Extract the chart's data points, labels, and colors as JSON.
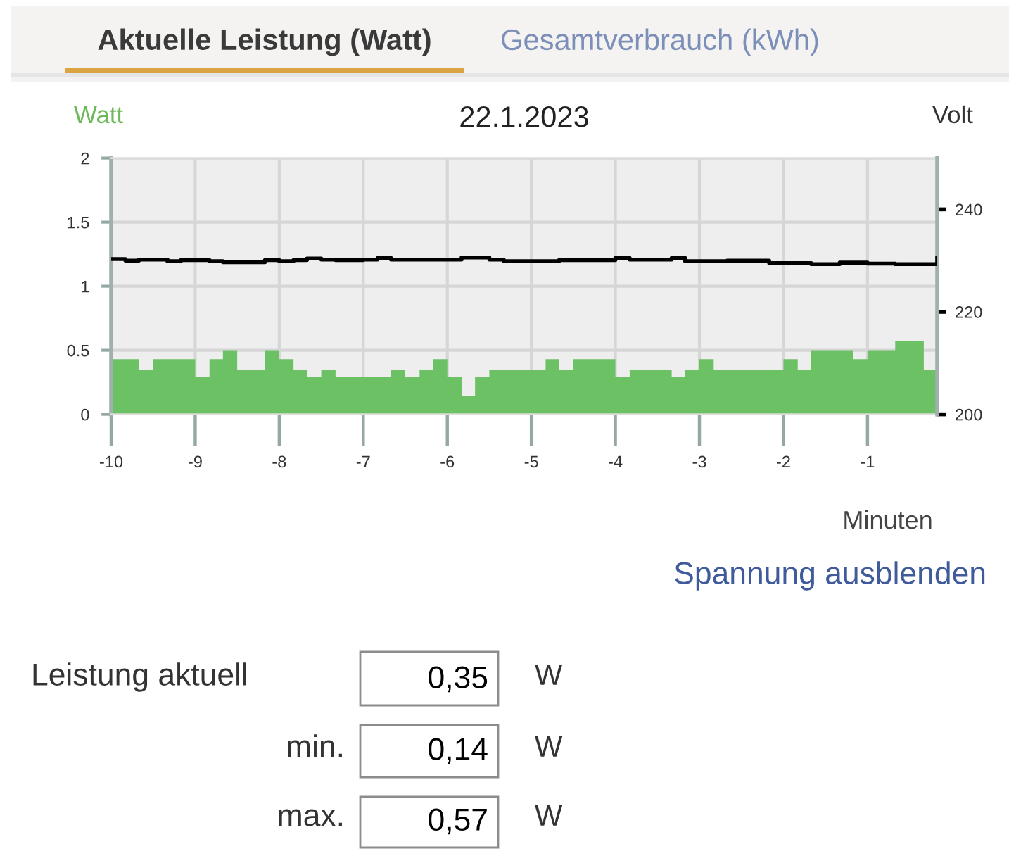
{
  "chart_data": {
    "type": "area",
    "title": "22.1.2023",
    "xlabel": "Minuten",
    "ylabel": "Watt",
    "y2label": "Volt",
    "xlim": [
      -10,
      -0.17
    ],
    "xticks": [
      -10,
      -9,
      -8,
      -7,
      -6,
      -5,
      -4,
      -3,
      -2,
      -1
    ],
    "ylim": [
      0,
      2
    ],
    "yticks": [
      0,
      0.5,
      1,
      1.5,
      2
    ],
    "y2lim": [
      200,
      250
    ],
    "y2ticks": [
      200,
      220,
      240
    ],
    "grid": true,
    "series": [
      {
        "color": "#6cc164",
        "x": [
          -10,
          -9.67,
          -9.67,
          -9.5,
          -9.5,
          -9,
          -9,
          -8.83,
          -8.83,
          -8.67,
          -8.67,
          -8.5,
          -8.5,
          -8.17,
          -8.17,
          -8,
          -8,
          -7.83,
          -7.83,
          -7.67,
          -7.67,
          -7.5,
          -7.5,
          -7.33,
          -7.33,
          -6.67,
          -6.67,
          -6.5,
          -6.5,
          -6.33,
          -6.33,
          -6.17,
          -6.17,
          -6,
          -6,
          -5.83,
          -5.83,
          -5.67,
          -5.67,
          -5.5,
          -5.5,
          -4.83,
          -4.83,
          -4.67,
          -4.67,
          -4.5,
          -4.5,
          -4,
          -4,
          -3.83,
          -3.83,
          -3.33,
          -3.33,
          -3.17,
          -3.17,
          -3,
          -3,
          -2.83,
          -2.83,
          -2,
          -2,
          -1.83,
          -1.83,
          -1.67,
          -1.67,
          -1.17,
          -1.17,
          -1,
          -1,
          -0.67,
          -0.67,
          -0.33,
          -0.33,
          -0.17
        ],
        "values": [
          0.43,
          0.43,
          0.35,
          0.35,
          0.43,
          0.43,
          0.29,
          0.29,
          0.43,
          0.43,
          0.5,
          0.5,
          0.35,
          0.35,
          0.5,
          0.5,
          0.43,
          0.43,
          0.35,
          0.35,
          0.29,
          0.29,
          0.35,
          0.35,
          0.29,
          0.29,
          0.35,
          0.35,
          0.29,
          0.29,
          0.35,
          0.35,
          0.43,
          0.43,
          0.29,
          0.29,
          0.14,
          0.14,
          0.29,
          0.29,
          0.35,
          0.35,
          0.43,
          0.43,
          0.35,
          0.35,
          0.43,
          0.43,
          0.29,
          0.29,
          0.35,
          0.35,
          0.29,
          0.29,
          0.35,
          0.35,
          0.43,
          0.43,
          0.35,
          0.35,
          0.43,
          0.43,
          0.35,
          0.35,
          0.5,
          0.5,
          0.43,
          0.43,
          0.5,
          0.5,
          0.57,
          0.57,
          0.35,
          0.35
        ]
      },
      {
        "type": "step",
        "axis": "y2",
        "color": "#000000",
        "x": [
          -10,
          -9.83,
          -9.67,
          -9.33,
          -9.17,
          -8.83,
          -8.67,
          -8.17,
          -8,
          -7.83,
          -7.67,
          -7.5,
          -7.33,
          -7,
          -6.83,
          -6.67,
          -5.83,
          -5.5,
          -5.33,
          -4.67,
          -4,
          -3.83,
          -3.33,
          -3.17,
          -2.67,
          -2.17,
          -1.67,
          -1.33,
          -1,
          -0.67,
          -0.17
        ],
        "values": [
          230.3,
          230.0,
          230.2,
          229.9,
          230.1,
          229.9,
          229.7,
          230.1,
          229.9,
          230.1,
          230.4,
          230.2,
          230.1,
          230.2,
          230.5,
          230.2,
          230.6,
          230.2,
          229.9,
          230.1,
          230.5,
          230.2,
          230.5,
          229.9,
          230.0,
          229.5,
          229.3,
          229.6,
          229.4,
          229.3,
          230.6
        ]
      }
    ],
    "annotations": [
      "Aktuelle Leistung (Watt)",
      "Gesamtverbrauch (kWh)",
      "Spannung ausblenden",
      "Leistung aktuell",
      "0,35",
      "W",
      "min.",
      "0,14",
      "W",
      "max.",
      "0,57",
      "W"
    ]
  }
}
